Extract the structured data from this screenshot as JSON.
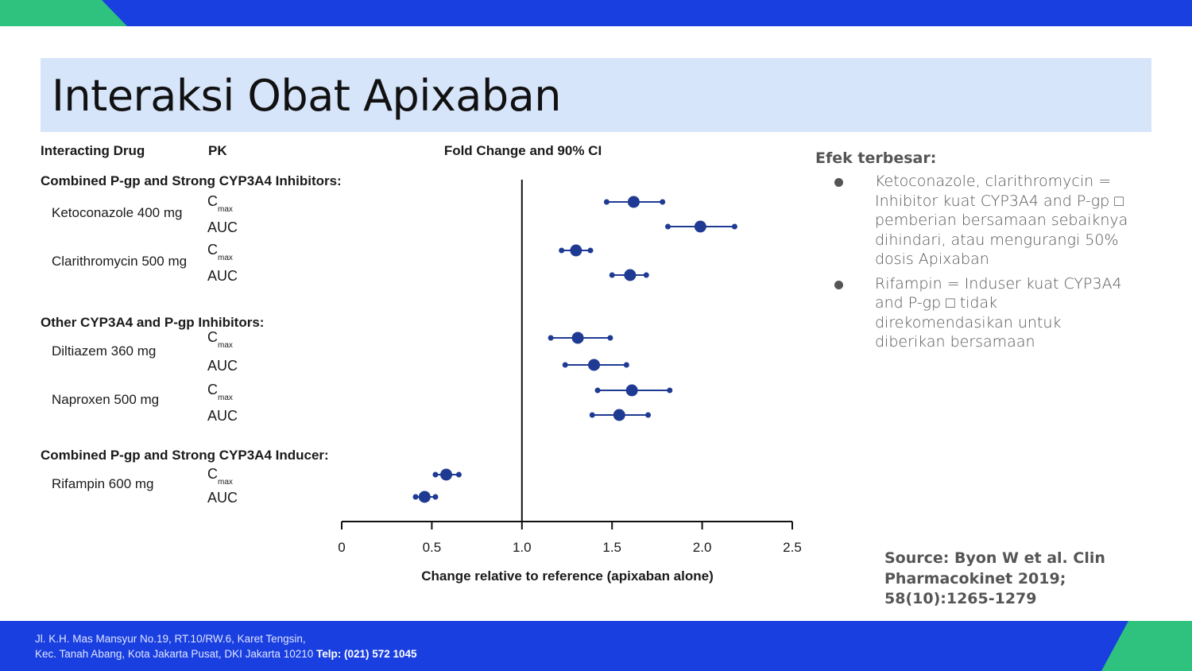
{
  "slide": {
    "title": "Interaksi Obat Apixaban"
  },
  "notes": {
    "heading": "Efek terbesar:",
    "bullets": [
      "Ketoconazole, clarithromycin = Inhibitor kuat CYP3A4 and P-gp □ pemberian bersamaan sebaiknya dihindari, atau mengurangi 50% dosis Apixaban",
      "Rifampin = Induser kuat CYP3A4 and P-gp □ tidak direkomendasikan untuk diberikan bersamaan"
    ]
  },
  "source": "Source: Byon W et al. Clin Pharmacokinet 2019; 58(10):1265-1279",
  "footer": {
    "address_line1": "Jl. K.H. Mas Mansyur No.19, RT.10/RW.6, Karet Tengsin,",
    "address_line2": "Kec. Tanah Abang, Kota Jakarta Pusat, DKI Jakarta 10210",
    "phone": "Telp: (021) 572 1045"
  },
  "colors": {
    "brand_blue": "#1a3fe0",
    "brand_green": "#2ec27e",
    "title_bg": "#d7e5fb",
    "marker": "#1f3a93"
  },
  "chart_data": {
    "type": "forest",
    "headers": {
      "drug": "Interacting Drug",
      "pk": "PK",
      "effect": "Fold Change and 90% CI"
    },
    "xlabel": "Change relative to reference (apixaban alone)",
    "xlim": [
      0,
      2.5
    ],
    "xticks": [
      0,
      0.5,
      1.0,
      1.5,
      2.0,
      2.5
    ],
    "xtick_labels": [
      "0",
      "0.5",
      "1.0",
      "1.5",
      "2.0",
      "2.5"
    ],
    "reference_line": 1.0,
    "groups": [
      {
        "label": "Combined P-gp and Strong CYP3A4 Inhibitors:",
        "drugs": [
          {
            "name": "Ketoconazole 400 mg",
            "rows": [
              {
                "pk": "C",
                "sub": "max",
                "est": 1.62,
                "lo": 1.47,
                "hi": 1.78
              },
              {
                "pk": "AUC",
                "sub": "",
                "est": 1.99,
                "lo": 1.81,
                "hi": 2.18
              }
            ]
          },
          {
            "name": "Clarithromycin 500 mg",
            "rows": [
              {
                "pk": "C",
                "sub": "max",
                "est": 1.3,
                "lo": 1.22,
                "hi": 1.38
              },
              {
                "pk": "AUC",
                "sub": "",
                "est": 1.6,
                "lo": 1.5,
                "hi": 1.69
              }
            ]
          }
        ]
      },
      {
        "label": "Other CYP3A4 and P-gp Inhibitors:",
        "drugs": [
          {
            "name": "Diltiazem 360 mg",
            "rows": [
              {
                "pk": "C",
                "sub": "max",
                "est": 1.31,
                "lo": 1.16,
                "hi": 1.49
              },
              {
                "pk": "AUC",
                "sub": "",
                "est": 1.4,
                "lo": 1.24,
                "hi": 1.58
              }
            ]
          },
          {
            "name": "Naproxen 500 mg",
            "rows": [
              {
                "pk": "C",
                "sub": "max",
                "est": 1.61,
                "lo": 1.42,
                "hi": 1.82
              },
              {
                "pk": "AUC",
                "sub": "",
                "est": 1.54,
                "lo": 1.39,
                "hi": 1.7
              }
            ]
          }
        ]
      },
      {
        "label": "Combined P-gp and Strong CYP3A4 Inducer:",
        "drugs": [
          {
            "name": "Rifampin 600 mg",
            "rows": [
              {
                "pk": "C",
                "sub": "max",
                "est": 0.58,
                "lo": 0.52,
                "hi": 0.65
              },
              {
                "pk": "AUC",
                "sub": "",
                "est": 0.46,
                "lo": 0.41,
                "hi": 0.52
              }
            ]
          }
        ]
      }
    ]
  }
}
